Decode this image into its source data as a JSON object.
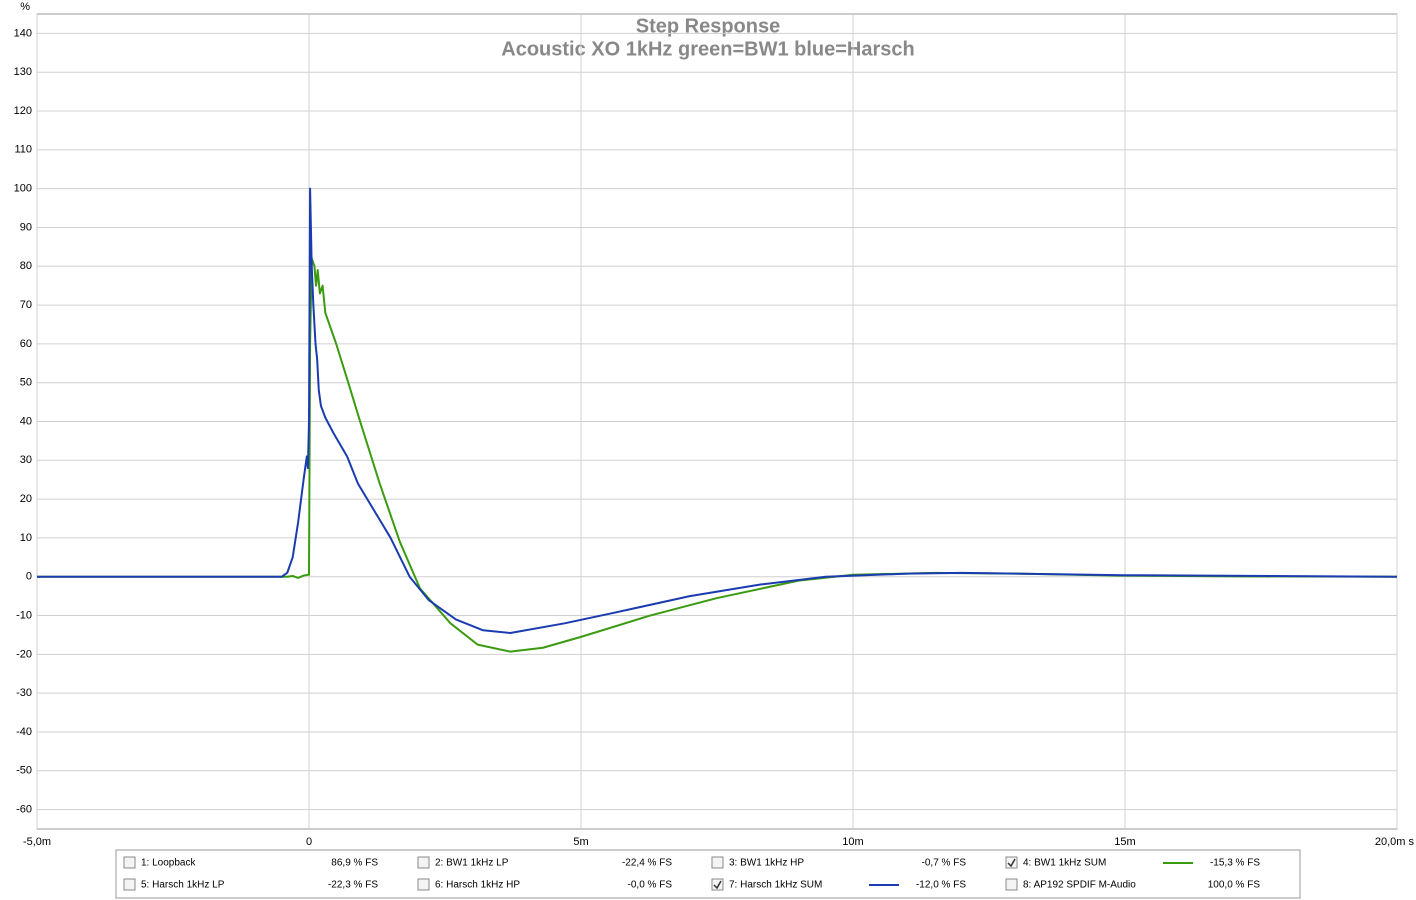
{
  "chart_data": {
    "type": "line",
    "title": "Step Response",
    "subtitle": "Acoustic XO 1kHz green=BW1 blue=Harsch",
    "y_label": "%",
    "grid": true,
    "xlim": [
      -5,
      20
    ],
    "ylim": [
      -65,
      145
    ],
    "xticks": [
      {
        "value": -5,
        "label": "-5,0m"
      },
      0,
      {
        "value": 5,
        "label": "5m"
      },
      {
        "value": 10,
        "label": "10m"
      },
      {
        "value": 15,
        "label": "15m"
      },
      {
        "value": 20,
        "label": "20,0m s"
      }
    ],
    "yticks": [
      -60,
      -50,
      -40,
      -30,
      -20,
      -10,
      0,
      10,
      20,
      30,
      40,
      50,
      60,
      70,
      80,
      90,
      100,
      110,
      120,
      130,
      140
    ],
    "series": [
      {
        "name": "1: Loopback",
        "color": "#a0a000",
        "checked": false,
        "readout": "86,9 % FS"
      },
      {
        "name": "2: BW1 1kHz LP",
        "color": "#3a9a10",
        "checked": false,
        "readout": "-22,4 % FS"
      },
      {
        "name": "3: BW1 1kHz HP",
        "color": "#3a9a10",
        "checked": false,
        "readout": "-0,7 % FS"
      },
      {
        "name": "4: BW1 1kHz SUM",
        "color": "#3a9a10",
        "checked": true,
        "readout": "-15,3 % FS",
        "x": [
          -5,
          -0.4,
          -0.3,
          -0.2,
          -0.1,
          -0.02,
          0,
          0.02,
          0.05,
          0.1,
          0.13,
          0.16,
          0.2,
          0.25,
          0.3,
          0.5,
          0.7,
          0.94,
          1.3,
          1.67,
          2.04,
          2.6,
          3.1,
          3.7,
          4.3,
          5,
          6.27,
          7.5,
          9,
          10,
          11.5,
          13,
          14.9,
          17,
          20
        ],
        "values": [
          0,
          0,
          0.2,
          -0.3,
          0.3,
          0.5,
          0.5,
          60,
          82,
          80,
          75,
          79,
          73,
          75,
          68,
          60,
          51,
          40,
          24,
          9,
          -3,
          -12,
          -17.5,
          -19.3,
          -18.3,
          -15.5,
          -10,
          -5.5,
          -1,
          0.5,
          1,
          0.8,
          0.3,
          0.1,
          0
        ]
      },
      {
        "name": "5: Harsch 1kHz LP",
        "color": "#1a3cb0",
        "checked": false,
        "readout": "-22,3 % FS"
      },
      {
        "name": "6: Harsch 1kHz HP",
        "color": "#1a3cb0",
        "checked": false,
        "readout": "-0,0 % FS"
      },
      {
        "name": "7: Harsch 1kHz SUM",
        "color": "#1a3cb0",
        "checked": true,
        "readout": "-12,0 % FS",
        "x": [
          -5,
          -0.5,
          -0.4,
          -0.3,
          -0.2,
          -0.1,
          -0.04,
          -0.02,
          0,
          0.02,
          0.05,
          0.08,
          0.12,
          0.15,
          0.18,
          0.22,
          0.3,
          0.45,
          0.7,
          0.9,
          1.2,
          1.5,
          1.85,
          2.2,
          2.7,
          3.2,
          3.7,
          4.7,
          5.7,
          7,
          8.3,
          9.5,
          11,
          12,
          15,
          20
        ],
        "values": [
          0,
          0,
          1,
          5,
          14,
          25,
          31,
          28,
          40,
          100,
          80,
          70,
          60,
          56,
          48,
          44,
          41,
          37,
          31,
          24,
          17,
          10,
          0,
          -6,
          -11,
          -13.8,
          -14.5,
          -12,
          -9,
          -5,
          -2,
          0,
          0.8,
          1,
          0.4,
          0
        ]
      },
      {
        "name": "8: AP192 SPDIF M-Audio",
        "color": "#e89a00",
        "checked": false,
        "readout": "100,0 % FS"
      }
    ]
  }
}
